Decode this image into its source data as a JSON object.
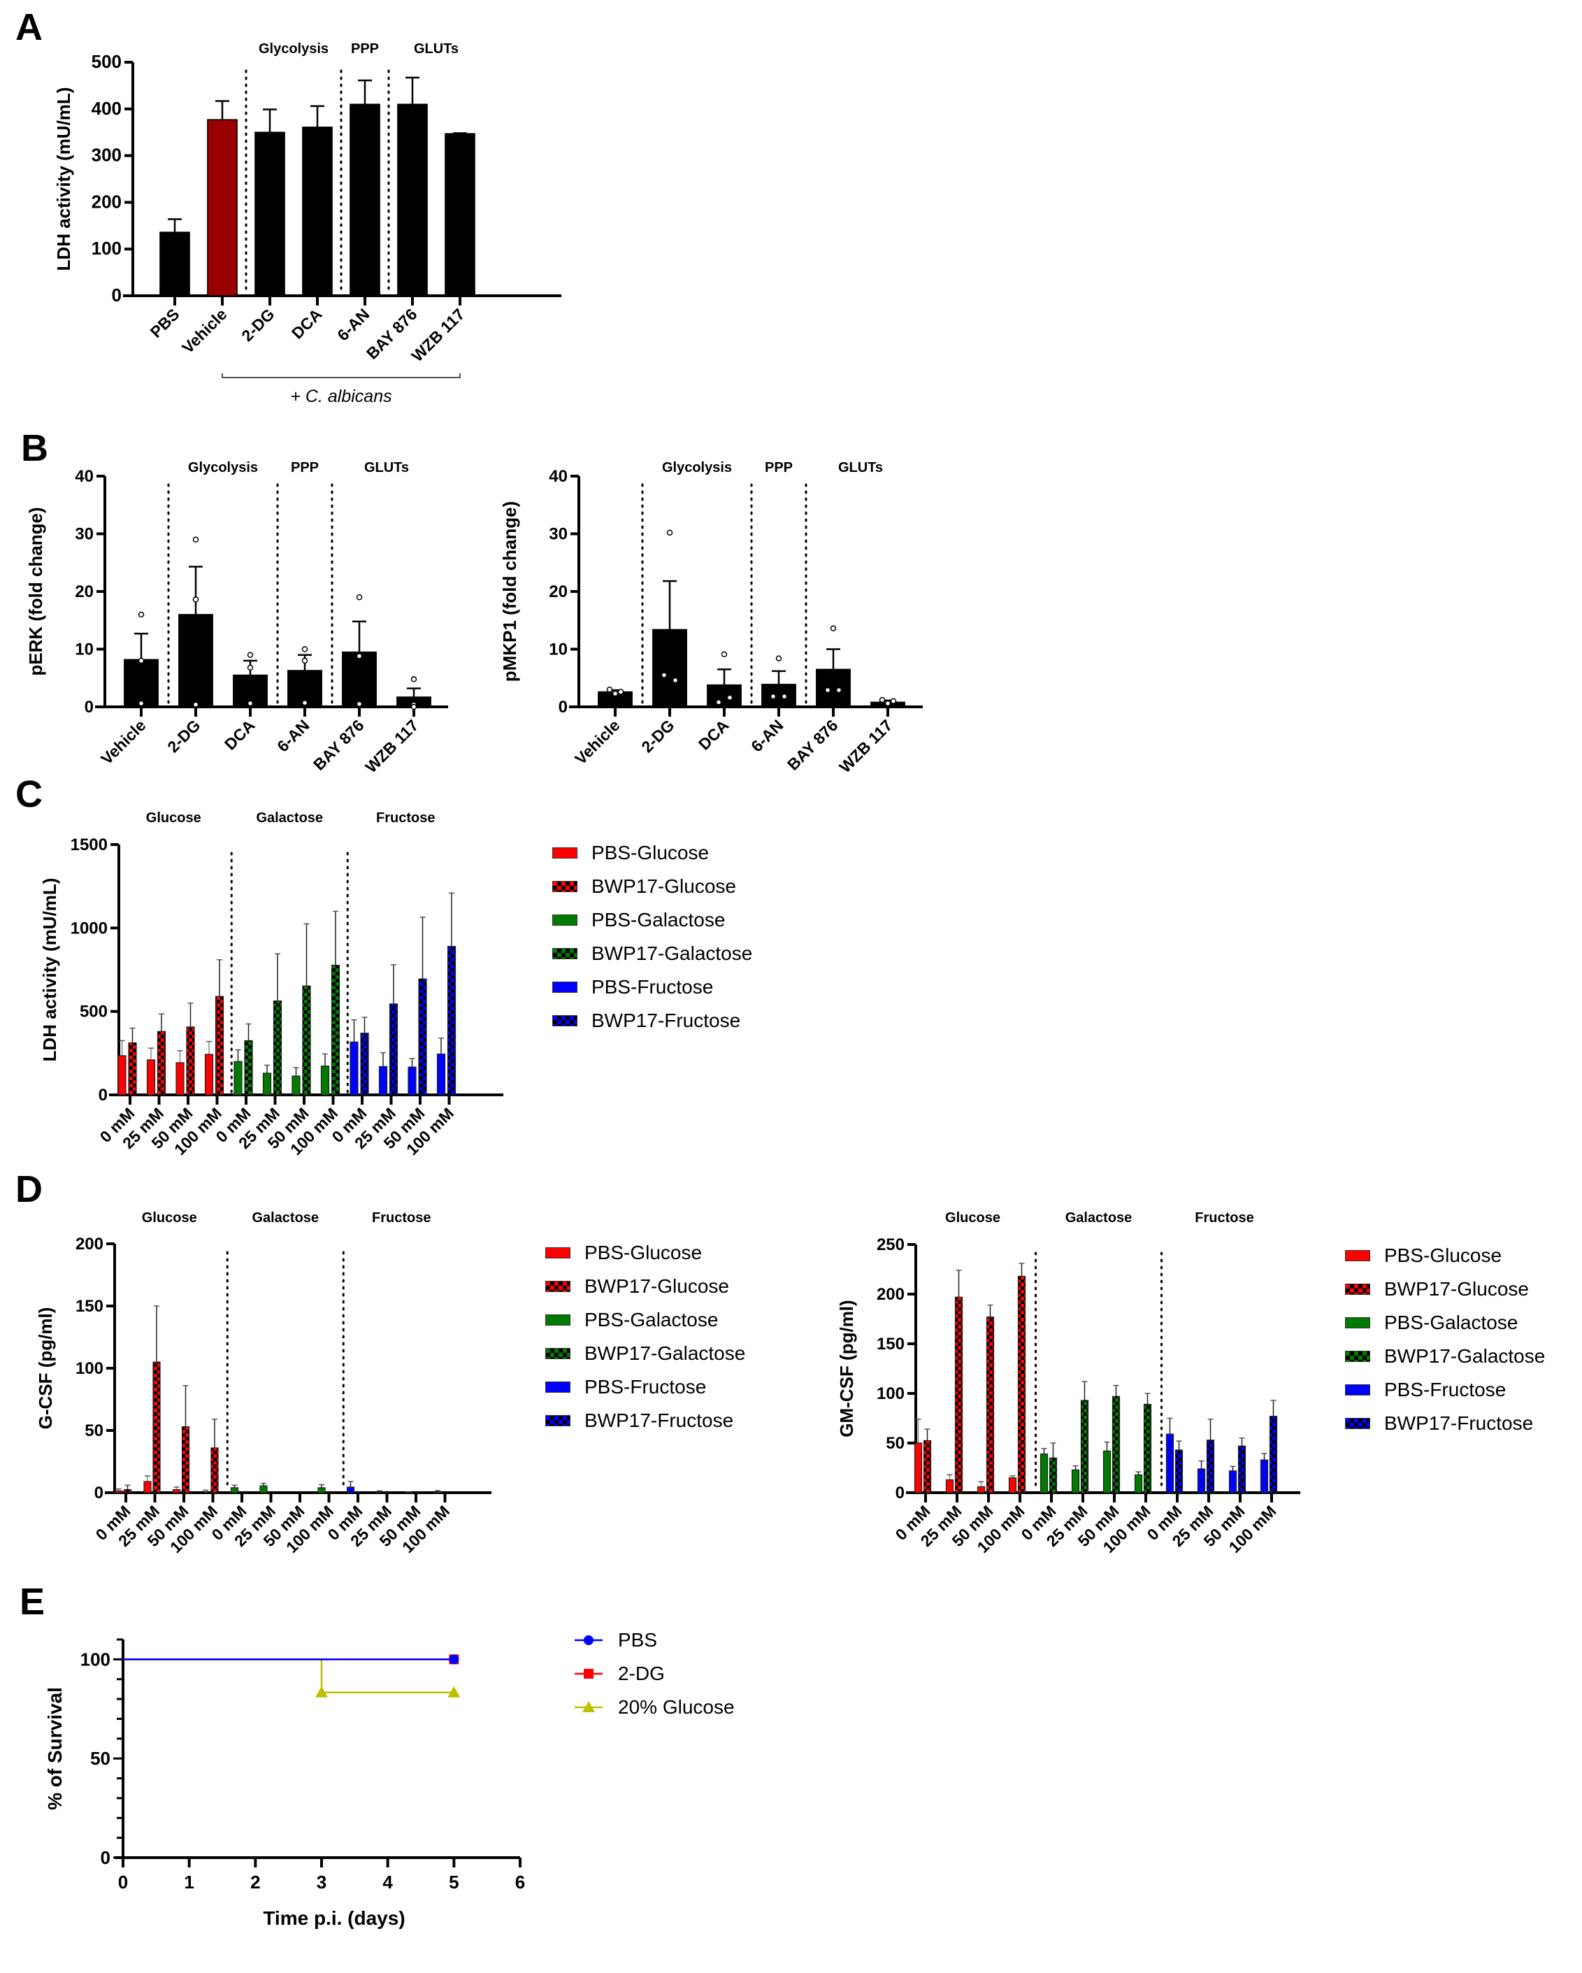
{
  "panels": {
    "A": "A",
    "B": "B",
    "C": "C",
    "D": "D",
    "E": "E"
  },
  "colors": {
    "black": "#000000",
    "dark_red": "#990000",
    "red": "#ff0000",
    "green": "#007a00",
    "blue": "#0000ff",
    "olive": "#bfbf00"
  },
  "legend_sugar": [
    {
      "label": "PBS-Glucose",
      "color": "#ff0000",
      "pattern": "solid"
    },
    {
      "label": "BWP17-Glucose",
      "color": "#ff0000",
      "pattern": "checker"
    },
    {
      "label": "PBS-Galactose",
      "color": "#007a00",
      "pattern": "solid"
    },
    {
      "label": "BWP17-Galactose",
      "color": "#007a00",
      "pattern": "checker"
    },
    {
      "label": "PBS-Fructose",
      "color": "#0000ff",
      "pattern": "solid"
    },
    {
      "label": "BWP17-Fructose",
      "color": "#0000ff",
      "pattern": "checker"
    }
  ],
  "legend_survival": [
    {
      "label": "PBS",
      "color": "#0000ff",
      "marker": "circle"
    },
    {
      "label": "2-DG",
      "color": "#ff0000",
      "marker": "square"
    },
    {
      "label": "20% Glucose",
      "color": "#bfbf00",
      "marker": "triangle"
    }
  ],
  "chart_data": [
    {
      "id": "A",
      "type": "bar",
      "ylabel": "LDH activity (mU/mL)",
      "ylim": [
        0,
        500
      ],
      "yticks": [
        0,
        100,
        200,
        300,
        400,
        500
      ],
      "categories": [
        "PBS",
        "Vehicle",
        "2-DG",
        "DCA",
        "6-AN",
        "BAY 876",
        "WZB 117"
      ],
      "values": [
        136,
        377,
        350,
        361,
        410,
        410,
        347
      ],
      "error_upper": [
        164,
        417,
        399,
        406,
        461,
        467,
        348
      ],
      "bar_colors": [
        "#000000",
        "#990000",
        "#000000",
        "#000000",
        "#000000",
        "#000000",
        "#000000"
      ],
      "group_labels": [
        "Glycolysis",
        "PPP",
        "GLUTs"
      ],
      "bracket_label": "+ C. albicans"
    },
    {
      "id": "B1",
      "type": "bar",
      "ylabel": "pERK (fold change)",
      "ylim": [
        0,
        40
      ],
      "yticks": [
        0,
        10,
        20,
        30,
        40
      ],
      "categories": [
        "Vehicle",
        "2-DG",
        "DCA",
        "6-AN",
        "BAY 876",
        "WZB 117"
      ],
      "values": [
        8.2,
        16.0,
        5.5,
        6.3,
        9.5,
        1.7
      ],
      "error_upper": [
        12.7,
        24.3,
        8.0,
        9.0,
        14.8,
        3.2
      ],
      "points": [
        [
          16.0,
          8.0,
          0.6
        ],
        [
          29.0,
          18.6,
          0.4
        ],
        [
          9.0,
          6.8,
          0.6
        ],
        [
          10.0,
          8.0,
          0.7
        ],
        [
          19.0,
          8.8,
          0.5
        ],
        [
          4.8,
          0.4,
          0.0
        ]
      ],
      "group_labels": [
        "Glycolysis",
        "PPP",
        "GLUTs"
      ]
    },
    {
      "id": "B2",
      "type": "bar",
      "ylabel": "pMKP1 (fold change)",
      "ylim": [
        0,
        40
      ],
      "yticks": [
        0,
        10,
        20,
        30,
        40
      ],
      "categories": [
        "Vehicle",
        "2-DG",
        "DCA",
        "6-AN",
        "BAY 876",
        "WZB 117"
      ],
      "values": [
        2.6,
        13.4,
        3.8,
        3.9,
        6.5,
        0.8
      ],
      "error_upper": [
        2.9,
        21.8,
        6.5,
        6.2,
        10.0,
        1.1
      ],
      "points": [
        [
          2.3,
          3.0,
          2.6
        ],
        [
          30.2,
          5.5,
          4.6
        ],
        [
          9.1,
          0.8,
          1.6
        ],
        [
          8.4,
          1.8,
          1.8
        ],
        [
          13.6,
          2.9,
          2.9
        ],
        [
          0.6,
          1.2,
          1.0
        ]
      ],
      "group_labels": [
        "Glycolysis",
        "PPP",
        "GLUTs"
      ]
    },
    {
      "id": "C",
      "type": "bar",
      "ylabel": "LDH activity (mU/mL)",
      "ylim": [
        0,
        1500
      ],
      "yticks": [
        0,
        500,
        1000,
        1500
      ],
      "categories": [
        "0 mM",
        "25 mM",
        "50 mM",
        "100 mM",
        "0 mM",
        "25 mM",
        "50 mM",
        "100 mM",
        "0 mM",
        "25 mM",
        "50 mM",
        "100 mM"
      ],
      "group_labels": [
        "Glucose",
        "Galactose",
        "Fructose"
      ],
      "series": [
        {
          "name": "PBS",
          "values": [
            235,
            210,
            193,
            243,
            200,
            130,
            113,
            173,
            317,
            170,
            167,
            245
          ],
          "error_upper": [
            325,
            280,
            265,
            320,
            270,
            178,
            163,
            245,
            450,
            253,
            218,
            340
          ]
        },
        {
          "name": "BWP17",
          "values": [
            312,
            380,
            407,
            590,
            325,
            563,
            653,
            777,
            370,
            545,
            695,
            890
          ],
          "error_upper": [
            400,
            485,
            550,
            810,
            425,
            845,
            1025,
            1100,
            465,
            780,
            1065,
            1210
          ]
        }
      ]
    },
    {
      "id": "D1",
      "type": "bar",
      "ylabel": "G-CSF (pg/ml)",
      "ylim": [
        0,
        200
      ],
      "yticks": [
        0,
        50,
        100,
        150,
        200
      ],
      "categories": [
        "0 mM",
        "25 mM",
        "50 mM",
        "100 mM",
        "0 mM",
        "25 mM",
        "50 mM",
        "100 mM",
        "0 mM",
        "25 mM",
        "50 mM",
        "100 mM"
      ],
      "group_labels": [
        "Glucose",
        "Galactose",
        "Fructose"
      ],
      "series": [
        {
          "name": "PBS",
          "values": [
            1.5,
            9,
            2.5,
            0,
            4,
            5.5,
            0,
            4,
            4.5,
            0.5,
            0.3,
            0.2
          ],
          "error_upper": [
            3,
            13.5,
            4.5,
            2,
            6,
            7.5,
            0,
            6.5,
            9,
            1.5,
            0.5,
            1.8
          ]
        },
        {
          "name": "BWP17",
          "values": [
            2.5,
            105,
            53,
            36,
            0,
            0,
            0,
            0,
            0,
            0,
            0,
            0
          ],
          "error_upper": [
            6,
            150,
            86,
            59,
            0,
            0,
            0,
            0,
            0,
            0,
            0,
            0
          ]
        }
      ]
    },
    {
      "id": "D2",
      "type": "bar",
      "ylabel": "GM-CSF (pg/ml)",
      "ylim": [
        0,
        250
      ],
      "yticks": [
        0,
        50,
        100,
        150,
        200,
        250
      ],
      "categories": [
        "0 mM",
        "25 mM",
        "50 mM",
        "100 mM",
        "0 mM",
        "25 mM",
        "50 mM",
        "100 mM",
        "0 mM",
        "25 mM",
        "50 mM",
        "100 mM"
      ],
      "group_labels": [
        "Glucose",
        "Galactose",
        "Fructose"
      ],
      "series": [
        {
          "name": "PBS",
          "values": [
            50,
            13,
            6,
            15,
            39,
            23,
            42,
            18,
            59,
            24,
            22,
            33
          ],
          "error_upper": [
            74,
            18,
            11,
            17,
            44.5,
            27,
            51,
            21,
            75,
            32,
            26.5,
            39.5
          ]
        },
        {
          "name": "BWP17",
          "values": [
            52.5,
            197,
            177,
            218,
            35,
            93,
            97,
            89,
            43,
            53,
            47,
            77
          ],
          "error_upper": [
            64,
            224,
            189,
            231,
            50,
            112,
            108,
            100,
            52,
            74,
            55,
            93
          ]
        }
      ]
    },
    {
      "id": "E",
      "type": "line",
      "xlabel": "Time p.i. (days)",
      "ylabel": "% of Survival",
      "xlim": [
        0,
        6
      ],
      "ylim": [
        0,
        110
      ],
      "xticks": [
        0,
        1,
        2,
        3,
        4,
        5,
        6
      ],
      "yticks": [
        0,
        50,
        100
      ],
      "series": [
        {
          "name": "PBS",
          "x": [
            0,
            5
          ],
          "y": [
            100,
            100
          ],
          "step": true
        },
        {
          "name": "2-DG",
          "x": [
            0,
            5
          ],
          "y": [
            100,
            100
          ],
          "step": true
        },
        {
          "name": "20% Glucose",
          "x": [
            0,
            3,
            5
          ],
          "y": [
            100,
            83.3,
            83.3
          ],
          "step": true
        }
      ]
    }
  ]
}
